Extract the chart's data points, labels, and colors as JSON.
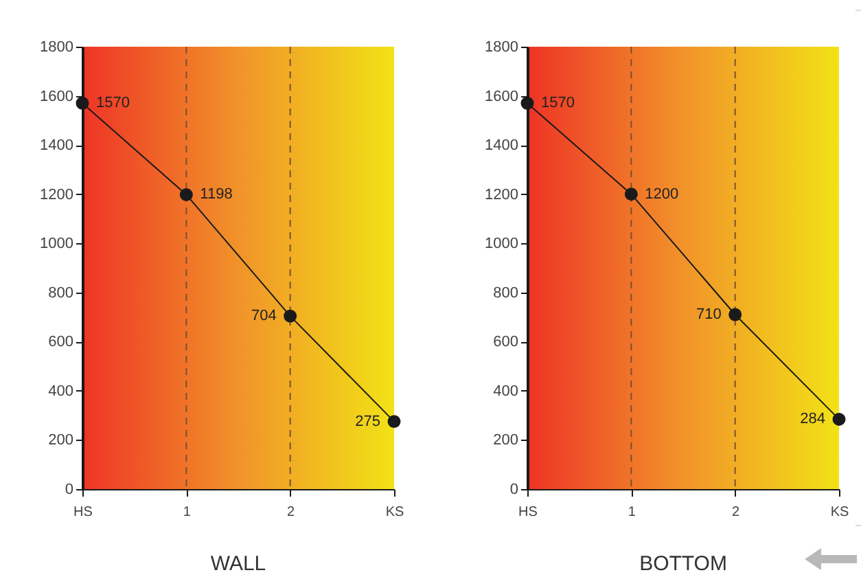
{
  "chart_data": [
    {
      "type": "line",
      "title": "WALL",
      "categories": [
        "HS",
        "1",
        "2",
        "KS"
      ],
      "series": [
        {
          "color": "#1a1a1a",
          "values": [
            1570,
            1198,
            704,
            275
          ]
        }
      ],
      "ylim": [
        0,
        1800
      ],
      "yticks": [
        0,
        200,
        400,
        600,
        800,
        1000,
        1200,
        1400,
        1600,
        1800
      ],
      "marker": "circle",
      "data_labels": true,
      "ref_lines": [
        {
          "axis": "x",
          "value": "1",
          "color": "#7a5030",
          "line_style": "dashed"
        },
        {
          "axis": "x",
          "value": "2",
          "color": "#7a5030",
          "line_style": "dashed"
        }
      ]
    },
    {
      "type": "line",
      "title": "BOTTOM",
      "categories": [
        "HS",
        "1",
        "2",
        "KS"
      ],
      "series": [
        {
          "color": "#1a1a1a",
          "values": [
            1570,
            1200,
            710,
            284
          ]
        }
      ],
      "ylim": [
        0,
        1800
      ],
      "yticks": [
        0,
        200,
        400,
        600,
        800,
        1000,
        1200,
        1400,
        1600,
        1800
      ],
      "marker": "circle",
      "data_labels": true,
      "ref_lines": [
        {
          "axis": "x",
          "value": "1",
          "color": "#7a5030",
          "line_style": "dashed"
        },
        {
          "axis": "x",
          "value": "2",
          "color": "#7a5030",
          "line_style": "dashed"
        }
      ]
    }
  ]
}
